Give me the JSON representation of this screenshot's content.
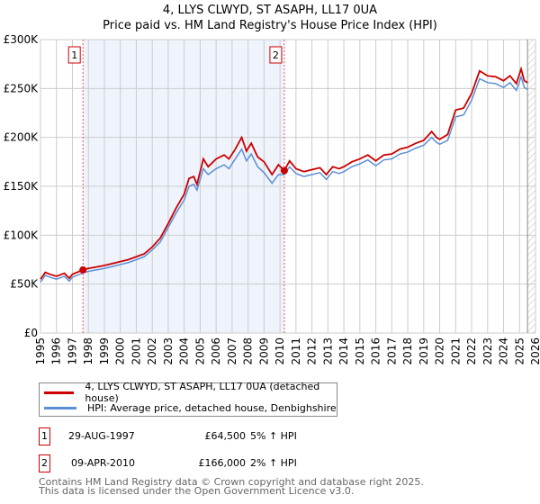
{
  "title": "4, LLYS CLWYD, ST ASAPH, LL17 0UA",
  "subtitle": "Price paid vs. HM Land Registry's House Price Index (HPI)",
  "chart_data": {
    "type": "line",
    "title": "4, LLYS CLWYD, ST ASAPH, LL17 0UA",
    "xlim": [
      1995,
      2026
    ],
    "ylim": [
      0,
      300000
    ],
    "x_ticks": [
      "1995",
      "1996",
      "1997",
      "1998",
      "1999",
      "2000",
      "2001",
      "2002",
      "2003",
      "2004",
      "2005",
      "2006",
      "2007",
      "2008",
      "2009",
      "2010",
      "2011",
      "2012",
      "2013",
      "2014",
      "2015",
      "2016",
      "2017",
      "2018",
      "2019",
      "2020",
      "2021",
      "2022",
      "2023",
      "2024",
      "2025",
      "2026"
    ],
    "y_ticks": [
      {
        "v": 0,
        "label": "£0"
      },
      {
        "v": 50000,
        "label": "£50K"
      },
      {
        "v": 100000,
        "label": "£100K"
      },
      {
        "v": 150000,
        "label": "£150K"
      },
      {
        "v": 200000,
        "label": "£200K"
      },
      {
        "v": 250000,
        "label": "£250K"
      },
      {
        "v": 300000,
        "label": "£300K"
      }
    ],
    "series": [
      {
        "name": "4, LLYS CLWYD, ST ASAPH, LL17 0UA (detached house)",
        "color": "#cc0000",
        "x": [
          1995,
          1995.3,
          1995.6,
          1996,
          1996.5,
          1996.8,
          1997,
          1997.66,
          1998,
          1999,
          2000,
          2000.5,
          2001,
          2001.5,
          2002,
          2002.5,
          2003,
          2003.5,
          2004,
          2004.3,
          2004.6,
          2004.8,
          2005.2,
          2005.5,
          2006,
          2006.5,
          2006.8,
          2007.2,
          2007.6,
          2007.9,
          2008.2,
          2008.6,
          2009,
          2009.5,
          2009.9,
          2010.27,
          2010.6,
          2011,
          2011.5,
          2012,
          2012.5,
          2012.9,
          2013.3,
          2013.7,
          2014,
          2014.5,
          2015,
          2015.5,
          2016,
          2016.5,
          2017,
          2017.5,
          2018,
          2018.5,
          2019,
          2019.5,
          2019.8,
          2020,
          2020.5,
          2021,
          2021.5,
          2022,
          2022.5,
          2023,
          2023.5,
          2024,
          2024.4,
          2024.8,
          2025.1,
          2025.3,
          2025.5
        ],
        "y": [
          55000,
          62000,
          60000,
          58000,
          61000,
          56000,
          60000,
          64500,
          66000,
          69000,
          73000,
          75000,
          78000,
          81000,
          88000,
          97000,
          112000,
          128000,
          142000,
          158000,
          160000,
          152000,
          178000,
          170000,
          178000,
          182000,
          178000,
          188000,
          200000,
          186000,
          194000,
          180000,
          175000,
          162000,
          172000,
          166000,
          176000,
          168000,
          165000,
          167000,
          169000,
          162000,
          170000,
          168000,
          170000,
          175000,
          178000,
          182000,
          176000,
          182000,
          183000,
          188000,
          190000,
          194000,
          197000,
          206000,
          200000,
          198000,
          203000,
          228000,
          230000,
          245000,
          268000,
          263000,
          262000,
          258000,
          263000,
          255000,
          270000,
          258000,
          256000
        ]
      },
      {
        "name": "HPI: Average price, detached house, Denbighshire",
        "color": "#5b8fd4",
        "x": [
          1995,
          1995.3,
          1995.6,
          1996,
          1996.5,
          1996.8,
          1997,
          1997.66,
          1998,
          1999,
          2000,
          2000.5,
          2001,
          2001.5,
          2002,
          2002.5,
          2003,
          2003.5,
          2004,
          2004.3,
          2004.6,
          2004.8,
          2005.2,
          2005.5,
          2006,
          2006.5,
          2006.8,
          2007.2,
          2007.6,
          2007.9,
          2008.2,
          2008.6,
          2009,
          2009.5,
          2009.9,
          2010.27,
          2010.6,
          2011,
          2011.5,
          2012,
          2012.5,
          2012.9,
          2013.3,
          2013.7,
          2014,
          2014.5,
          2015,
          2015.5,
          2016,
          2016.5,
          2017,
          2017.5,
          2018,
          2018.5,
          2019,
          2019.5,
          2019.8,
          2020,
          2020.5,
          2021,
          2021.5,
          2022,
          2022.5,
          2023,
          2023.5,
          2024,
          2024.4,
          2024.8,
          2025.1,
          2025.3,
          2025.5
        ],
        "y": [
          52000,
          59000,
          57000,
          55000,
          58000,
          53000,
          57000,
          61500,
          63000,
          66000,
          70000,
          72000,
          75000,
          78000,
          85000,
          93000,
          108000,
          123000,
          136000,
          150000,
          152000,
          146000,
          168000,
          162000,
          168000,
          172000,
          168000,
          178000,
          188000,
          176000,
          183000,
          170000,
          164000,
          153000,
          162000,
          162000,
          170000,
          163000,
          160000,
          162000,
          164000,
          157000,
          165000,
          163000,
          165000,
          170000,
          173000,
          177000,
          171000,
          177000,
          178000,
          183000,
          185000,
          189000,
          192000,
          200000,
          195000,
          193000,
          197000,
          221000,
          223000,
          238000,
          260000,
          256000,
          255000,
          251000,
          256000,
          248000,
          262000,
          251000,
          249000
        ]
      }
    ],
    "sales": [
      {
        "label": "1",
        "x": 1997.66,
        "y": 64500
      },
      {
        "label": "2",
        "x": 2010.27,
        "y": 166000
      }
    ],
    "forecast_from": 2025.5
  },
  "legend": {
    "items": [
      {
        "label": "4, LLYS CLWYD, ST ASAPH, LL17 0UA (detached house)",
        "color": "#cc0000"
      },
      {
        "label": "HPI: Average price, detached house, Denbighshire",
        "color": "#5b8fd4"
      }
    ]
  },
  "transactions": [
    {
      "num": "1",
      "date": "29-AUG-1997",
      "price": "£64,500",
      "hpi": "5% ↑ HPI"
    },
    {
      "num": "2",
      "date": "09-APR-2010",
      "price": "£166,000",
      "hpi": "2% ↑ HPI"
    }
  ],
  "footer": {
    "line1": "Contains HM Land Registry data © Crown copyright and database right 2025.",
    "line2": "This data is licensed under the Open Government Licence v3.0."
  }
}
